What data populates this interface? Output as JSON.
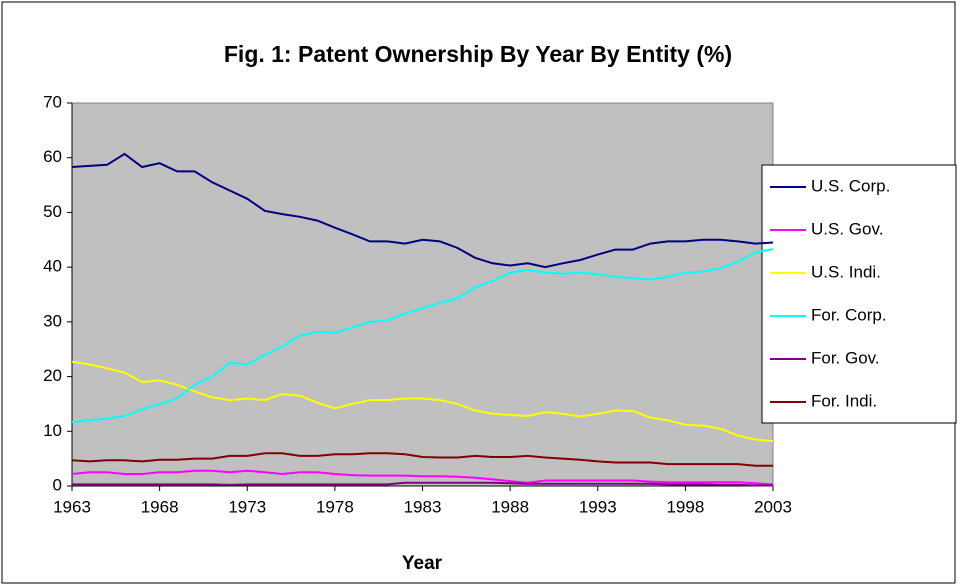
{
  "chart_data": {
    "type": "line",
    "title": "Fig. 1: Patent Ownership By Year By Entity (%)",
    "x_label": "Year",
    "x": [
      1963,
      1964,
      1965,
      1966,
      1967,
      1968,
      1969,
      1970,
      1971,
      1972,
      1973,
      1974,
      1975,
      1976,
      1977,
      1978,
      1979,
      1980,
      1981,
      1982,
      1983,
      1984,
      1985,
      1986,
      1987,
      1988,
      1989,
      1990,
      1991,
      1992,
      1993,
      1994,
      1995,
      1996,
      1997,
      1998,
      1999,
      2000,
      2001,
      2002,
      2003
    ],
    "xlim": [
      1963,
      2003
    ],
    "xticks": [
      1963,
      1968,
      1973,
      1978,
      1983,
      1988,
      1993,
      1998,
      2003
    ],
    "ylim": [
      0,
      70
    ],
    "yticks": [
      0,
      10,
      20,
      30,
      40,
      50,
      60,
      70
    ],
    "legend": "right",
    "series": [
      {
        "name": "U.S. Corp.",
        "color": "#000080",
        "values": [
          58.3,
          58.5,
          58.7,
          60.7,
          58.3,
          59,
          57.5,
          57.5,
          55.5,
          54,
          52.5,
          50.3,
          49.7,
          49.2,
          48.5,
          47.2,
          46,
          44.7,
          44.7,
          44.3,
          45,
          44.7,
          43.5,
          41.7,
          40.7,
          40.3,
          40.7,
          40,
          40.7,
          41.3,
          42.3,
          43.2,
          43.2,
          44.3,
          44.7,
          44.7,
          45,
          45,
          44.7,
          44.3,
          44.5
        ]
      },
      {
        "name": "U.S. Gov.",
        "color": "#ff00ff",
        "values": [
          2.2,
          2.5,
          2.5,
          2.2,
          2.2,
          2.5,
          2.5,
          2.8,
          2.8,
          2.5,
          2.8,
          2.5,
          2.2,
          2.5,
          2.5,
          2.2,
          2,
          1.9,
          1.9,
          1.9,
          1.8,
          1.8,
          1.7,
          1.5,
          1.2,
          0.9,
          0.6,
          1,
          1,
          1,
          1,
          1,
          1,
          0.8,
          0.7,
          0.7,
          0.7,
          0.7,
          0.7,
          0.5,
          0.3
        ]
      },
      {
        "name": "U.S. Indi.",
        "color": "#ffff00",
        "values": [
          22.7,
          22.2,
          21.5,
          20.7,
          19,
          19.3,
          18.5,
          17.3,
          16.2,
          15.7,
          16,
          15.7,
          16.8,
          16.5,
          15.2,
          14.2,
          15,
          15.7,
          15.7,
          16,
          16,
          15.7,
          15,
          13.8,
          13.2,
          13,
          12.8,
          13.5,
          13.2,
          12.7,
          13.2,
          13.8,
          13.7,
          12.5,
          12,
          11.2,
          11,
          10.5,
          9.2,
          8.5,
          8.2
        ]
      },
      {
        "name": "For. Corp.",
        "color": "#00ffff",
        "values": [
          11.7,
          12,
          12.3,
          12.8,
          14,
          15,
          16,
          18.5,
          20,
          22.5,
          22.2,
          24,
          25.5,
          27.5,
          28.2,
          28,
          29,
          30,
          30.3,
          31.5,
          32.5,
          33.5,
          34.3,
          36.3,
          37.5,
          39,
          39.5,
          39,
          38.8,
          39,
          38.7,
          38.2,
          38,
          37.7,
          38.2,
          39,
          39.2,
          39.8,
          41,
          42.7,
          43.3
        ]
      },
      {
        "name": "For. Gov.",
        "color": "#800080",
        "values": [
          0.3,
          0.3,
          0.3,
          0.3,
          0.3,
          0.3,
          0.3,
          0.3,
          0.3,
          0.2,
          0.3,
          0.3,
          0.3,
          0.3,
          0.3,
          0.3,
          0.3,
          0.3,
          0.3,
          0.6,
          0.6,
          0.6,
          0.6,
          0.6,
          0.6,
          0.5,
          0.4,
          0.4,
          0.4,
          0.4,
          0.4,
          0.4,
          0.4,
          0.4,
          0.3,
          0.3,
          0.3,
          0.2,
          0.2,
          0.1,
          0.1
        ]
      },
      {
        "name": "For. Indi.",
        "color": "#800000",
        "values": [
          4.7,
          4.5,
          4.7,
          4.7,
          4.5,
          4.8,
          4.8,
          5,
          5,
          5.5,
          5.5,
          6,
          6,
          5.5,
          5.5,
          5.8,
          5.8,
          6,
          6,
          5.8,
          5.3,
          5.2,
          5.2,
          5.5,
          5.3,
          5.3,
          5.5,
          5.2,
          5,
          4.8,
          4.5,
          4.3,
          4.3,
          4.3,
          4,
          4,
          4,
          4,
          4,
          3.7,
          3.7
        ]
      }
    ]
  }
}
